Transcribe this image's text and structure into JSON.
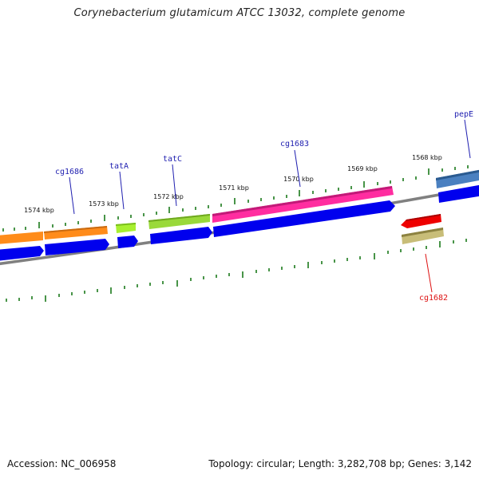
{
  "title": "Corynebacterium glutamicum ATCC 13032, complete genome",
  "footer": {
    "accession": "Accession: NC_006958",
    "summary": "Topology: circular; Length: 3,282,708 bp; Genes: 3,142"
  },
  "colors": {
    "backbone": "#808080",
    "ticks": "#1a7a1a",
    "cds": "#0000ee",
    "label_forward": "#1f1fb0",
    "label_reverse": "#dd1111"
  },
  "ruler_labels": [
    "1574 kbp",
    "1573 kbp",
    "1572 kbp",
    "1571 kbp",
    "1570 kbp",
    "1569 kbp",
    "1568 kbp"
  ],
  "genes": [
    {
      "name": "cg1686",
      "strand": "forward",
      "color": "#ff8c1a"
    },
    {
      "name": "tatA",
      "strand": "forward",
      "color": "#a8f030"
    },
    {
      "name": "tatC",
      "strand": "forward",
      "color": "#9ad93a"
    },
    {
      "name": "cg1683",
      "strand": "forward",
      "color": "#ff2da0"
    },
    {
      "name": "pepE",
      "strand": "forward",
      "color": "#4a80c0"
    },
    {
      "name": "cg1682",
      "strand": "reverse",
      "color": "#ee0000"
    }
  ]
}
